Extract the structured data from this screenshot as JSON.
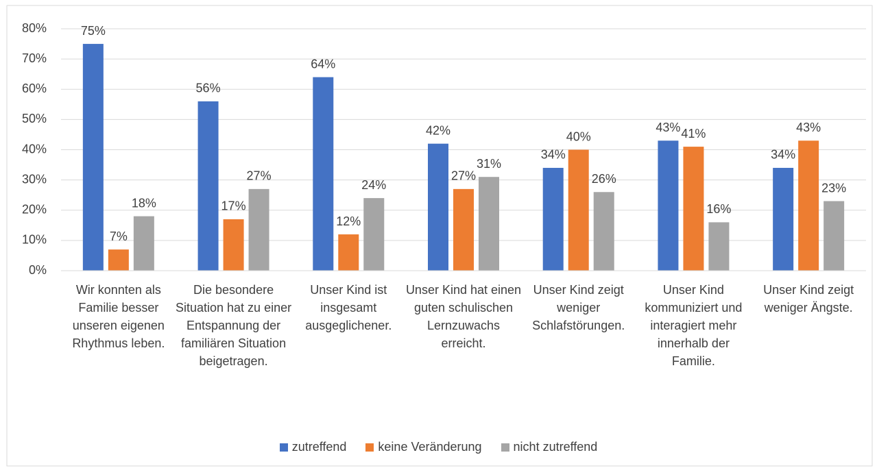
{
  "chart_data": {
    "type": "bar",
    "categories": [
      "Wir konnten als Familie besser unseren eigenen Rhythmus leben.",
      "Die besondere Situation hat zu einer Entspannung der familiären Situation beigetragen.",
      "Unser Kind ist insgesamt ausgeglichener.",
      "Unser Kind hat einen guten schulischen Lernzuwachs erreicht.",
      "Unser Kind zeigt weniger Schlafstörungen.",
      "Unser Kind kommuniziert und interagiert mehr innerhalb der Familie.",
      "Unser Kind zeigt weniger Ängste."
    ],
    "series": [
      {
        "name": "zutreffend",
        "color": "#4472c4",
        "values": [
          75,
          56,
          64,
          42,
          34,
          43,
          34
        ],
        "value_labels": [
          "75%",
          "56%",
          "64%",
          "42%",
          "34%",
          "43%",
          "34%"
        ]
      },
      {
        "name": "keine Veränderung",
        "color": "#ed7d31",
        "values": [
          7,
          17,
          12,
          27,
          40,
          41,
          43
        ],
        "value_labels": [
          "7%",
          "17%",
          "12%",
          "27%",
          "40%",
          "41%",
          "43%"
        ]
      },
      {
        "name": "nicht zutreffend",
        "color": "#a5a5a5",
        "values": [
          18,
          27,
          24,
          31,
          26,
          16,
          23
        ],
        "value_labels": [
          "18%",
          "27%",
          "24%",
          "31%",
          "26%",
          "16%",
          "23%"
        ]
      }
    ],
    "ylim": [
      0,
      80
    ],
    "yticks": [
      {
        "value": 0,
        "label": "0%"
      },
      {
        "value": 10,
        "label": "10%"
      },
      {
        "value": 20,
        "label": "20%"
      },
      {
        "value": 30,
        "label": "30%"
      },
      {
        "value": 40,
        "label": "40%"
      },
      {
        "value": 50,
        "label": "50%"
      },
      {
        "value": 60,
        "label": "60%"
      },
      {
        "value": 70,
        "label": "70%"
      },
      {
        "value": 80,
        "label": "80%"
      }
    ],
    "grid": true,
    "legend": "bottom"
  }
}
